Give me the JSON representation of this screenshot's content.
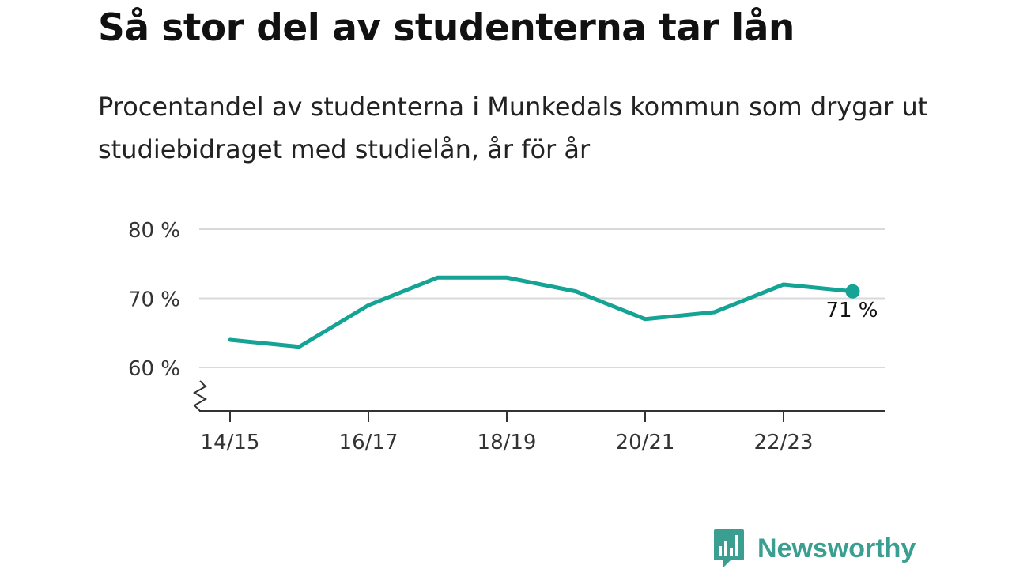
{
  "chart_data": {
    "type": "line",
    "title": "Så stor del av studenterna tar lån",
    "subtitle": "Procentandel av studenterna i Munkedals kommun som drygar ut studiebidraget med studielån, år för år",
    "categories": [
      "14/15",
      "15/16",
      "16/17",
      "17/18",
      "18/19",
      "19/20",
      "20/21",
      "21/22",
      "22/23",
      "23/24"
    ],
    "x_tick_labels": [
      "14/15",
      "16/17",
      "18/19",
      "20/21",
      "22/23"
    ],
    "values": [
      64,
      63,
      69,
      73,
      73,
      71,
      67,
      68,
      72,
      71
    ],
    "y_ticks": [
      {
        "value": 60,
        "label": "60 %"
      },
      {
        "value": 70,
        "label": "70 %"
      },
      {
        "value": 80,
        "label": "80 %"
      }
    ],
    "ylim": [
      53.5,
      80
    ],
    "y_axis_break": true,
    "grid": true,
    "end_label": "71 %",
    "colors": {
      "line": "#14a394",
      "grid": "#d9d9d9",
      "axis": "#333333",
      "tick_text": "#333333"
    }
  },
  "brand": {
    "name": "Newsworthy",
    "icon": "bar-chart-speech-bubble-icon",
    "color": "#3a9e90"
  }
}
